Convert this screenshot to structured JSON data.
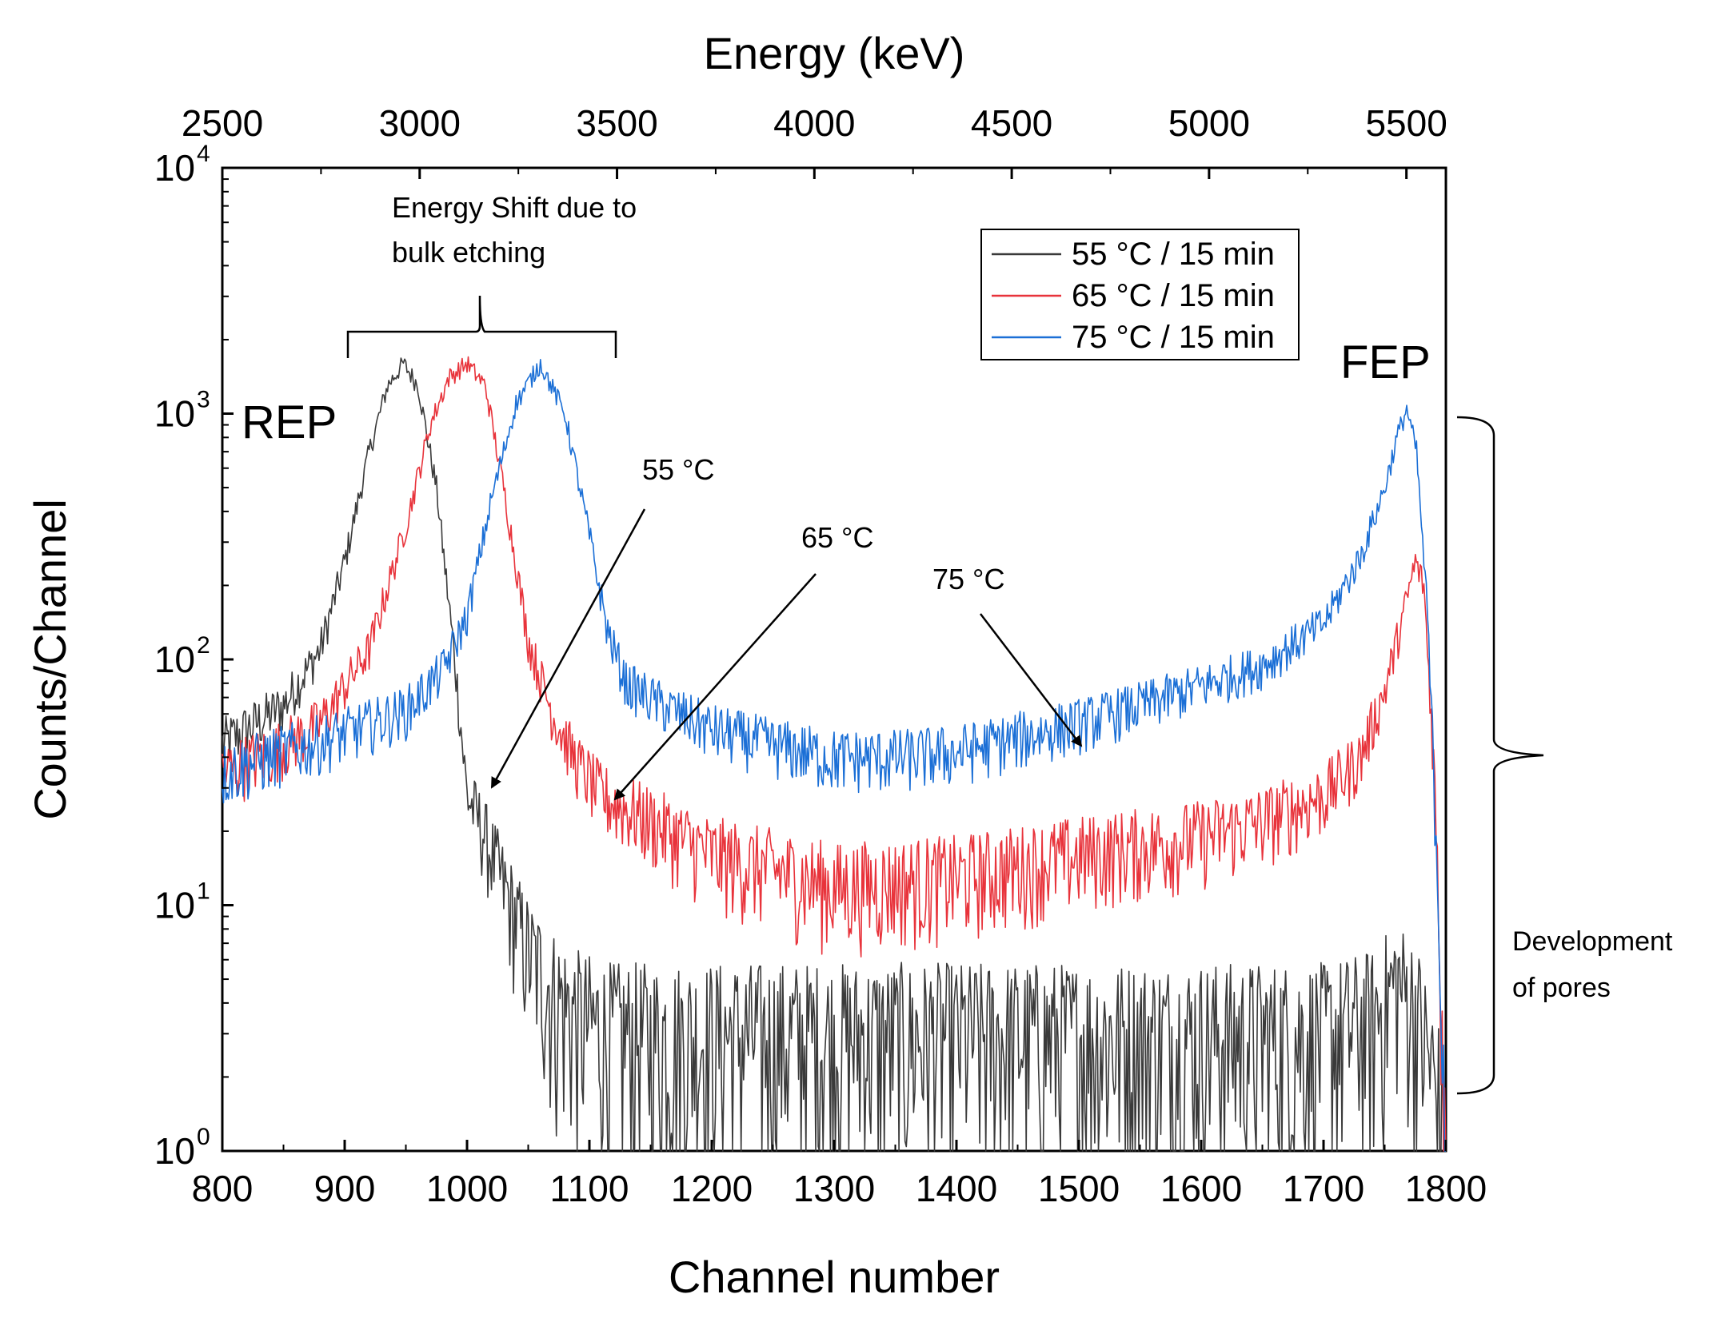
{
  "chart_data": {
    "type": "line",
    "title": "",
    "xlabel": "Channel number",
    "ylabel": "Counts/Channel",
    "x2label": "Energy (keV)",
    "xlim": [
      800,
      1800
    ],
    "ylim": [
      1,
      10000
    ],
    "yscale": "log",
    "x2lim": [
      2500,
      5600
    ],
    "xticks": [
      "800",
      "900",
      "1000",
      "1100",
      "1200",
      "1300",
      "1400",
      "1500",
      "1600",
      "1700",
      "1800"
    ],
    "x2ticks": [
      "2500",
      "3000",
      "3500",
      "4000",
      "4500",
      "5000",
      "5500"
    ],
    "yticks": [
      {
        "base": "10",
        "exp": "0"
      },
      {
        "base": "10",
        "exp": "1"
      },
      {
        "base": "10",
        "exp": "2"
      },
      {
        "base": "10",
        "exp": "3"
      },
      {
        "base": "10",
        "exp": "4"
      }
    ],
    "legend_position": "top-right",
    "series": [
      {
        "name": "55 °C / 15 min",
        "color": "#3a3a3a",
        "x": [
          800,
          850,
          880,
          900,
          920,
          935,
          948,
          960,
          975,
          990,
          1000,
          1010,
          1030,
          1050,
          1070,
          1090,
          1120,
          1200,
          1300,
          1400,
          1500,
          1600,
          1700,
          1740,
          1760,
          1775,
          1785,
          1795,
          1800
        ],
        "y": [
          45,
          65,
          110,
          250,
          700,
          1300,
          1600,
          1300,
          500,
          100,
          28,
          22,
          12,
          6.5,
          4.5,
          3.5,
          3.0,
          3.0,
          3.0,
          3.0,
          3.0,
          3.0,
          3.0,
          3.5,
          5.0,
          4.0,
          2.5,
          1.5,
          1.2
        ]
      },
      {
        "name": "65 °C / 15 min",
        "color": "#e8333b",
        "x": [
          800,
          840,
          880,
          920,
          950,
          970,
          985,
          1000,
          1015,
          1030,
          1050,
          1070,
          1090,
          1110,
          1150,
          1200,
          1250,
          1300,
          1400,
          1500,
          1600,
          1650,
          1700,
          1730,
          1750,
          1765,
          1775,
          1782,
          1790,
          1800
        ],
        "y": [
          35,
          42,
          55,
          110,
          350,
          900,
          1400,
          1600,
          1300,
          500,
          120,
          60,
          38,
          28,
          22,
          16,
          14,
          12,
          13,
          16,
          19,
          22,
          28,
          40,
          75,
          150,
          250,
          200,
          40,
          1.2
        ]
      },
      {
        "name": "75 °C / 15 min",
        "color": "#1b6fd6",
        "x": [
          800,
          850,
          900,
          950,
          980,
          1000,
          1020,
          1040,
          1060,
          1080,
          1100,
          1115,
          1130,
          1160,
          1200,
          1250,
          1300,
          1350,
          1400,
          1450,
          1500,
          1550,
          1600,
          1650,
          1700,
          1730,
          1750,
          1760,
          1768,
          1776,
          1785,
          1792,
          1800
        ],
        "y": [
          35,
          42,
          50,
          62,
          90,
          150,
          450,
          1100,
          1600,
          1000,
          320,
          130,
          80,
          65,
          52,
          45,
          40,
          40,
          42,
          48,
          55,
          65,
          78,
          95,
          140,
          260,
          500,
          800,
          1050,
          700,
          150,
          20,
          1.5
        ]
      }
    ],
    "annotations": {
      "rep": "REP",
      "fep": "FEP",
      "shift_line1": "Energy Shift due to",
      "shift_line2": "bulk etching",
      "arrow_55": "55 °C",
      "arrow_65": "65 °C",
      "arrow_75": "75 °C",
      "pores_line1": "Development",
      "pores_line2": "of pores"
    }
  }
}
